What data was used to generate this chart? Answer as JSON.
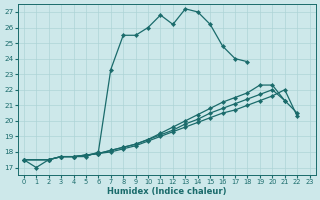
{
  "xlabel": "Humidex (Indice chaleur)",
  "bg_color": "#cde8ea",
  "grid_color": "#aed4d6",
  "line_color": "#1a6b6b",
  "xlim": [
    -0.5,
    23.5
  ],
  "ylim": [
    16.5,
    27.5
  ],
  "yticks": [
    17,
    18,
    19,
    20,
    21,
    22,
    23,
    24,
    25,
    26,
    27
  ],
  "xticks": [
    0,
    1,
    2,
    3,
    4,
    5,
    6,
    7,
    8,
    9,
    10,
    11,
    12,
    13,
    14,
    15,
    16,
    17,
    18,
    19,
    20,
    21,
    22,
    23
  ],
  "line1_x": [
    0,
    1,
    2,
    3,
    4,
    5,
    6,
    7,
    8,
    9,
    10,
    11,
    12,
    13,
    14,
    15,
    16,
    17,
    18,
    19
  ],
  "line1_y": [
    17.5,
    17.0,
    17.5,
    17.7,
    17.7,
    17.7,
    18.0,
    23.3,
    25.5,
    25.5,
    26.0,
    26.8,
    26.2,
    27.2,
    27.0,
    26.2,
    24.8,
    24.0,
    23.8,
    null
  ],
  "line2_x": [
    0,
    2,
    3,
    4,
    5,
    6,
    7,
    8,
    9,
    10,
    11,
    12,
    13,
    14,
    15,
    16,
    17,
    18,
    19,
    20,
    21
  ],
  "line2_y": [
    17.5,
    17.5,
    17.7,
    17.7,
    17.8,
    17.9,
    18.1,
    18.3,
    18.5,
    18.8,
    19.2,
    19.6,
    20.0,
    20.4,
    20.8,
    21.2,
    21.5,
    21.8,
    22.3,
    22.3,
    21.3
  ],
  "line3_x": [
    0,
    2,
    3,
    4,
    5,
    6,
    7,
    8,
    9,
    10,
    11,
    12,
    13,
    14,
    15,
    16,
    17,
    18,
    19,
    20,
    21,
    22
  ],
  "line3_y": [
    17.5,
    17.5,
    17.7,
    17.7,
    17.8,
    17.9,
    18.1,
    18.3,
    18.5,
    18.8,
    19.1,
    19.4,
    19.8,
    20.1,
    20.5,
    20.8,
    21.1,
    21.4,
    21.7,
    22.0,
    21.3,
    20.5
  ],
  "line4_x": [
    0,
    2,
    3,
    4,
    5,
    6,
    7,
    8,
    9,
    10,
    11,
    12,
    13,
    14,
    15,
    16,
    17,
    18,
    19,
    20,
    21,
    22
  ],
  "line4_y": [
    17.5,
    17.5,
    17.7,
    17.7,
    17.8,
    17.9,
    18.0,
    18.2,
    18.4,
    18.7,
    19.0,
    19.3,
    19.6,
    19.9,
    20.2,
    20.5,
    20.7,
    21.0,
    21.3,
    21.6,
    22.0,
    20.3
  ]
}
